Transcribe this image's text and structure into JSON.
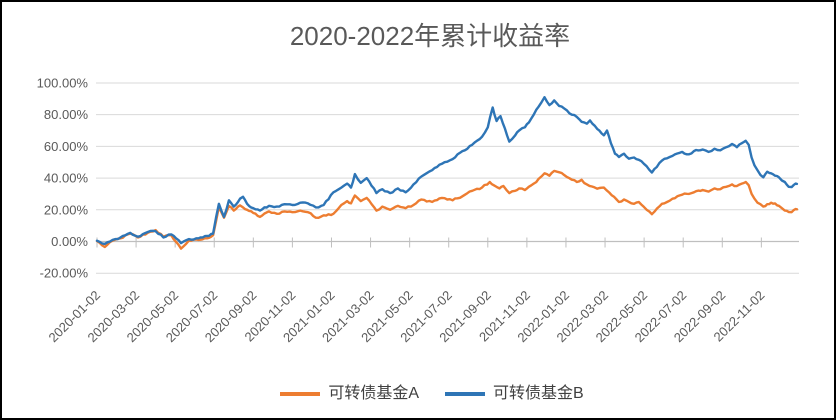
{
  "colors": {
    "background": "#FFFFFF",
    "border": "#000000",
    "gridline": "#D9D9D9",
    "axis_line": "#BFBFBF",
    "axis_text": "#595959",
    "title_text": "#595959",
    "legend_text": "#404040",
    "series_a": "#ED7D31",
    "series_b": "#2E75B6"
  },
  "chart_data": {
    "type": "line",
    "title": "2020-2022年累计收益率",
    "grid": true,
    "legend_position": "bottom",
    "x_axis": {
      "kind": "date",
      "start": "2020-01-02",
      "end": "2022-12-30",
      "tick_interval": "2 months",
      "x_unit": "months_since_2020-01-02",
      "tick_labels": [
        "2020-01-02",
        "2020-03-02",
        "2020-05-02",
        "2020-07-02",
        "2020-09-02",
        "2020-11-02",
        "2021-01-02",
        "2021-03-02",
        "2021-05-02",
        "2021-07-02",
        "2021-09-02",
        "2021-11-02",
        "2022-01-02",
        "2022-03-02",
        "2022-05-02",
        "2022-07-02",
        "2022-09-02",
        "2022-11-02"
      ]
    },
    "y_axis": {
      "min": -20,
      "max": 100,
      "step": 20,
      "format": "percent",
      "tick_labels": [
        "100.00%",
        "80.00%",
        "60.00%",
        "40.00%",
        "20.00%",
        "0.00%",
        "-20.00%"
      ]
    },
    "series": [
      {
        "name": "可转债基金A",
        "color": "#ED7D31",
        "points": [
          [
            0,
            0.3
          ],
          [
            0.4,
            -3.5
          ],
          [
            0.8,
            0.5
          ],
          [
            1.2,
            2
          ],
          [
            1.7,
            5
          ],
          [
            2.1,
            2.5
          ],
          [
            2.6,
            5.5
          ],
          [
            3.0,
            7.2
          ],
          [
            3.4,
            3
          ],
          [
            3.8,
            4
          ],
          [
            4.3,
            -4.5
          ],
          [
            4.7,
            0.5
          ],
          [
            5.2,
            1
          ],
          [
            5.63,
            2
          ],
          [
            5.94,
            4
          ],
          [
            6.24,
            21.8
          ],
          [
            6.5,
            15
          ],
          [
            6.75,
            22.4
          ],
          [
            7.0,
            19.5
          ],
          [
            7.32,
            22.8
          ],
          [
            7.47,
            21.5
          ],
          [
            7.68,
            20
          ],
          [
            8.0,
            18
          ],
          [
            8.34,
            15.5
          ],
          [
            8.8,
            19
          ],
          [
            9.2,
            17.5
          ],
          [
            9.6,
            19
          ],
          [
            10.0,
            18.5
          ],
          [
            10.4,
            19.5
          ],
          [
            10.8,
            18.5
          ],
          [
            11.2,
            15
          ],
          [
            11.6,
            16.5
          ],
          [
            12.1,
            17.5
          ],
          [
            12.5,
            23
          ],
          [
            12.8,
            25.5
          ],
          [
            13.0,
            24
          ],
          [
            13.2,
            29
          ],
          [
            13.5,
            25.5
          ],
          [
            13.8,
            27.5
          ],
          [
            14.3,
            19.5
          ],
          [
            14.6,
            22
          ],
          [
            15.0,
            20
          ],
          [
            15.4,
            22.5
          ],
          [
            15.8,
            21
          ],
          [
            16.2,
            23
          ],
          [
            16.6,
            26.5
          ],
          [
            17.15,
            25
          ],
          [
            17.65,
            27.5
          ],
          [
            18.2,
            26
          ],
          [
            18.7,
            28.5
          ],
          [
            19.2,
            32
          ],
          [
            19.7,
            34
          ],
          [
            20.1,
            37.5
          ],
          [
            20.3,
            35.5
          ],
          [
            20.6,
            33.5
          ],
          [
            20.8,
            35
          ],
          [
            21.1,
            30.5
          ],
          [
            21.4,
            32
          ],
          [
            21.6,
            33.5
          ],
          [
            21.9,
            32.5
          ],
          [
            22.1,
            34.5
          ],
          [
            22.35,
            36.5
          ],
          [
            22.6,
            39.5
          ],
          [
            22.9,
            43
          ],
          [
            23.15,
            41.5
          ],
          [
            23.4,
            44.5
          ],
          [
            23.54,
            44
          ],
          [
            23.9,
            42
          ],
          [
            24.05,
            40.7
          ],
          [
            24.3,
            39
          ],
          [
            24.56,
            37.5
          ],
          [
            24.8,
            38.9
          ],
          [
            25.07,
            36
          ],
          [
            25.6,
            33.3
          ],
          [
            25.94,
            34
          ],
          [
            26.35,
            29.1
          ],
          [
            26.71,
            24.9
          ],
          [
            26.97,
            26.5
          ],
          [
            27.22,
            25
          ],
          [
            27.48,
            23.8
          ],
          [
            27.73,
            24.9
          ],
          [
            27.99,
            21.8
          ],
          [
            28.4,
            17.2
          ],
          [
            28.65,
            20.7
          ],
          [
            28.91,
            23.8
          ],
          [
            29.17,
            24.9
          ],
          [
            29.45,
            27
          ],
          [
            29.7,
            28.5
          ],
          [
            29.95,
            29.5
          ],
          [
            30.3,
            30
          ],
          [
            30.55,
            31
          ],
          [
            31.0,
            32.5
          ],
          [
            31.3,
            31.5
          ],
          [
            31.6,
            33.5
          ],
          [
            31.9,
            33
          ],
          [
            32.2,
            34.5
          ],
          [
            32.5,
            36
          ],
          [
            32.75,
            35
          ],
          [
            33.0,
            36.5
          ],
          [
            33.2,
            37.5
          ],
          [
            33.35,
            35.5
          ],
          [
            33.5,
            30
          ],
          [
            33.65,
            27
          ],
          [
            33.8,
            24.5
          ],
          [
            33.95,
            23.5
          ],
          [
            34.1,
            22
          ],
          [
            34.3,
            23.5
          ],
          [
            34.5,
            24.5
          ],
          [
            34.7,
            24
          ],
          [
            34.9,
            22.5
          ],
          [
            35.05,
            21
          ],
          [
            35.2,
            19.5
          ],
          [
            35.4,
            18.6
          ],
          [
            35.55,
            18.5
          ],
          [
            35.75,
            20.5
          ],
          [
            35.82,
            20.3
          ]
        ]
      },
      {
        "name": "可转债基金B",
        "color": "#2E75B6",
        "points": [
          [
            0,
            0.5
          ],
          [
            0.4,
            -1.5
          ],
          [
            0.8,
            1
          ],
          [
            1.2,
            2.5
          ],
          [
            1.7,
            5.5
          ],
          [
            2.1,
            3
          ],
          [
            2.6,
            6
          ],
          [
            3.0,
            6.5
          ],
          [
            3.4,
            2.5
          ],
          [
            3.8,
            4.5
          ],
          [
            4.3,
            -1
          ],
          [
            4.7,
            1.5
          ],
          [
            5.2,
            2
          ],
          [
            5.63,
            3.5
          ],
          [
            5.94,
            5
          ],
          [
            6.24,
            23.8
          ],
          [
            6.5,
            15.5
          ],
          [
            6.75,
            26
          ],
          [
            7.0,
            22
          ],
          [
            7.32,
            27
          ],
          [
            7.47,
            28.2
          ],
          [
            7.68,
            23.8
          ],
          [
            8.0,
            21
          ],
          [
            8.34,
            19.5
          ],
          [
            8.8,
            22.5
          ],
          [
            9.2,
            22
          ],
          [
            9.6,
            23.5
          ],
          [
            10.0,
            23
          ],
          [
            10.4,
            24.5
          ],
          [
            10.8,
            24
          ],
          [
            11.2,
            21.5
          ],
          [
            11.6,
            23
          ],
          [
            12.1,
            31
          ],
          [
            12.5,
            34
          ],
          [
            12.8,
            36.5
          ],
          [
            13.0,
            34
          ],
          [
            13.2,
            42.5
          ],
          [
            13.5,
            37
          ],
          [
            13.8,
            40
          ],
          [
            14.3,
            30.5
          ],
          [
            14.6,
            33
          ],
          [
            15.0,
            30.5
          ],
          [
            15.4,
            33.5
          ],
          [
            15.8,
            31
          ],
          [
            16.2,
            36
          ],
          [
            16.6,
            41
          ],
          [
            17.15,
            45
          ],
          [
            17.65,
            49
          ],
          [
            18.2,
            52
          ],
          [
            18.7,
            57
          ],
          [
            19.2,
            61
          ],
          [
            19.7,
            66
          ],
          [
            20.0,
            72
          ],
          [
            20.25,
            84.5
          ],
          [
            20.45,
            76
          ],
          [
            20.65,
            79
          ],
          [
            21.1,
            63
          ],
          [
            21.4,
            67
          ],
          [
            21.6,
            70
          ],
          [
            21.9,
            72
          ],
          [
            22.1,
            75
          ],
          [
            22.35,
            80
          ],
          [
            22.6,
            85
          ],
          [
            22.9,
            91
          ],
          [
            23.15,
            86
          ],
          [
            23.4,
            89
          ],
          [
            23.54,
            87
          ],
          [
            23.65,
            85.5
          ],
          [
            23.9,
            84
          ],
          [
            24.05,
            82.7
          ],
          [
            24.3,
            80
          ],
          [
            24.56,
            78.5
          ],
          [
            24.8,
            75.5
          ],
          [
            25.07,
            74.3
          ],
          [
            25.23,
            76.4
          ],
          [
            25.6,
            71
          ],
          [
            25.94,
            67
          ],
          [
            26.1,
            70
          ],
          [
            26.3,
            62
          ],
          [
            26.51,
            55.4
          ],
          [
            26.71,
            53.3
          ],
          [
            26.97,
            55.4
          ],
          [
            27.22,
            52.2
          ],
          [
            27.48,
            53
          ],
          [
            27.73,
            51.5
          ],
          [
            27.99,
            49
          ],
          [
            28.4,
            43.5
          ],
          [
            28.65,
            47
          ],
          [
            28.91,
            51
          ],
          [
            29.17,
            52.5
          ],
          [
            29.45,
            54
          ],
          [
            29.7,
            55.5
          ],
          [
            29.95,
            56.5
          ],
          [
            30.3,
            55
          ],
          [
            30.55,
            57
          ],
          [
            31.0,
            58
          ],
          [
            31.3,
            56.5
          ],
          [
            31.6,
            58.5
          ],
          [
            31.9,
            57.5
          ],
          [
            32.2,
            59.5
          ],
          [
            32.5,
            61.5
          ],
          [
            32.75,
            59.5
          ],
          [
            33.0,
            62
          ],
          [
            33.2,
            63.5
          ],
          [
            33.35,
            61
          ],
          [
            33.5,
            53
          ],
          [
            33.65,
            48
          ],
          [
            33.8,
            45
          ],
          [
            33.95,
            42
          ],
          [
            34.1,
            40.5
          ],
          [
            34.3,
            44
          ],
          [
            34.5,
            43
          ],
          [
            34.7,
            41.5
          ],
          [
            34.9,
            40.5
          ],
          [
            35.05,
            38.5
          ],
          [
            35.2,
            37.5
          ],
          [
            35.4,
            34.5
          ],
          [
            35.55,
            34.3
          ],
          [
            35.75,
            36.5
          ],
          [
            35.82,
            36.3
          ]
        ]
      }
    ]
  }
}
